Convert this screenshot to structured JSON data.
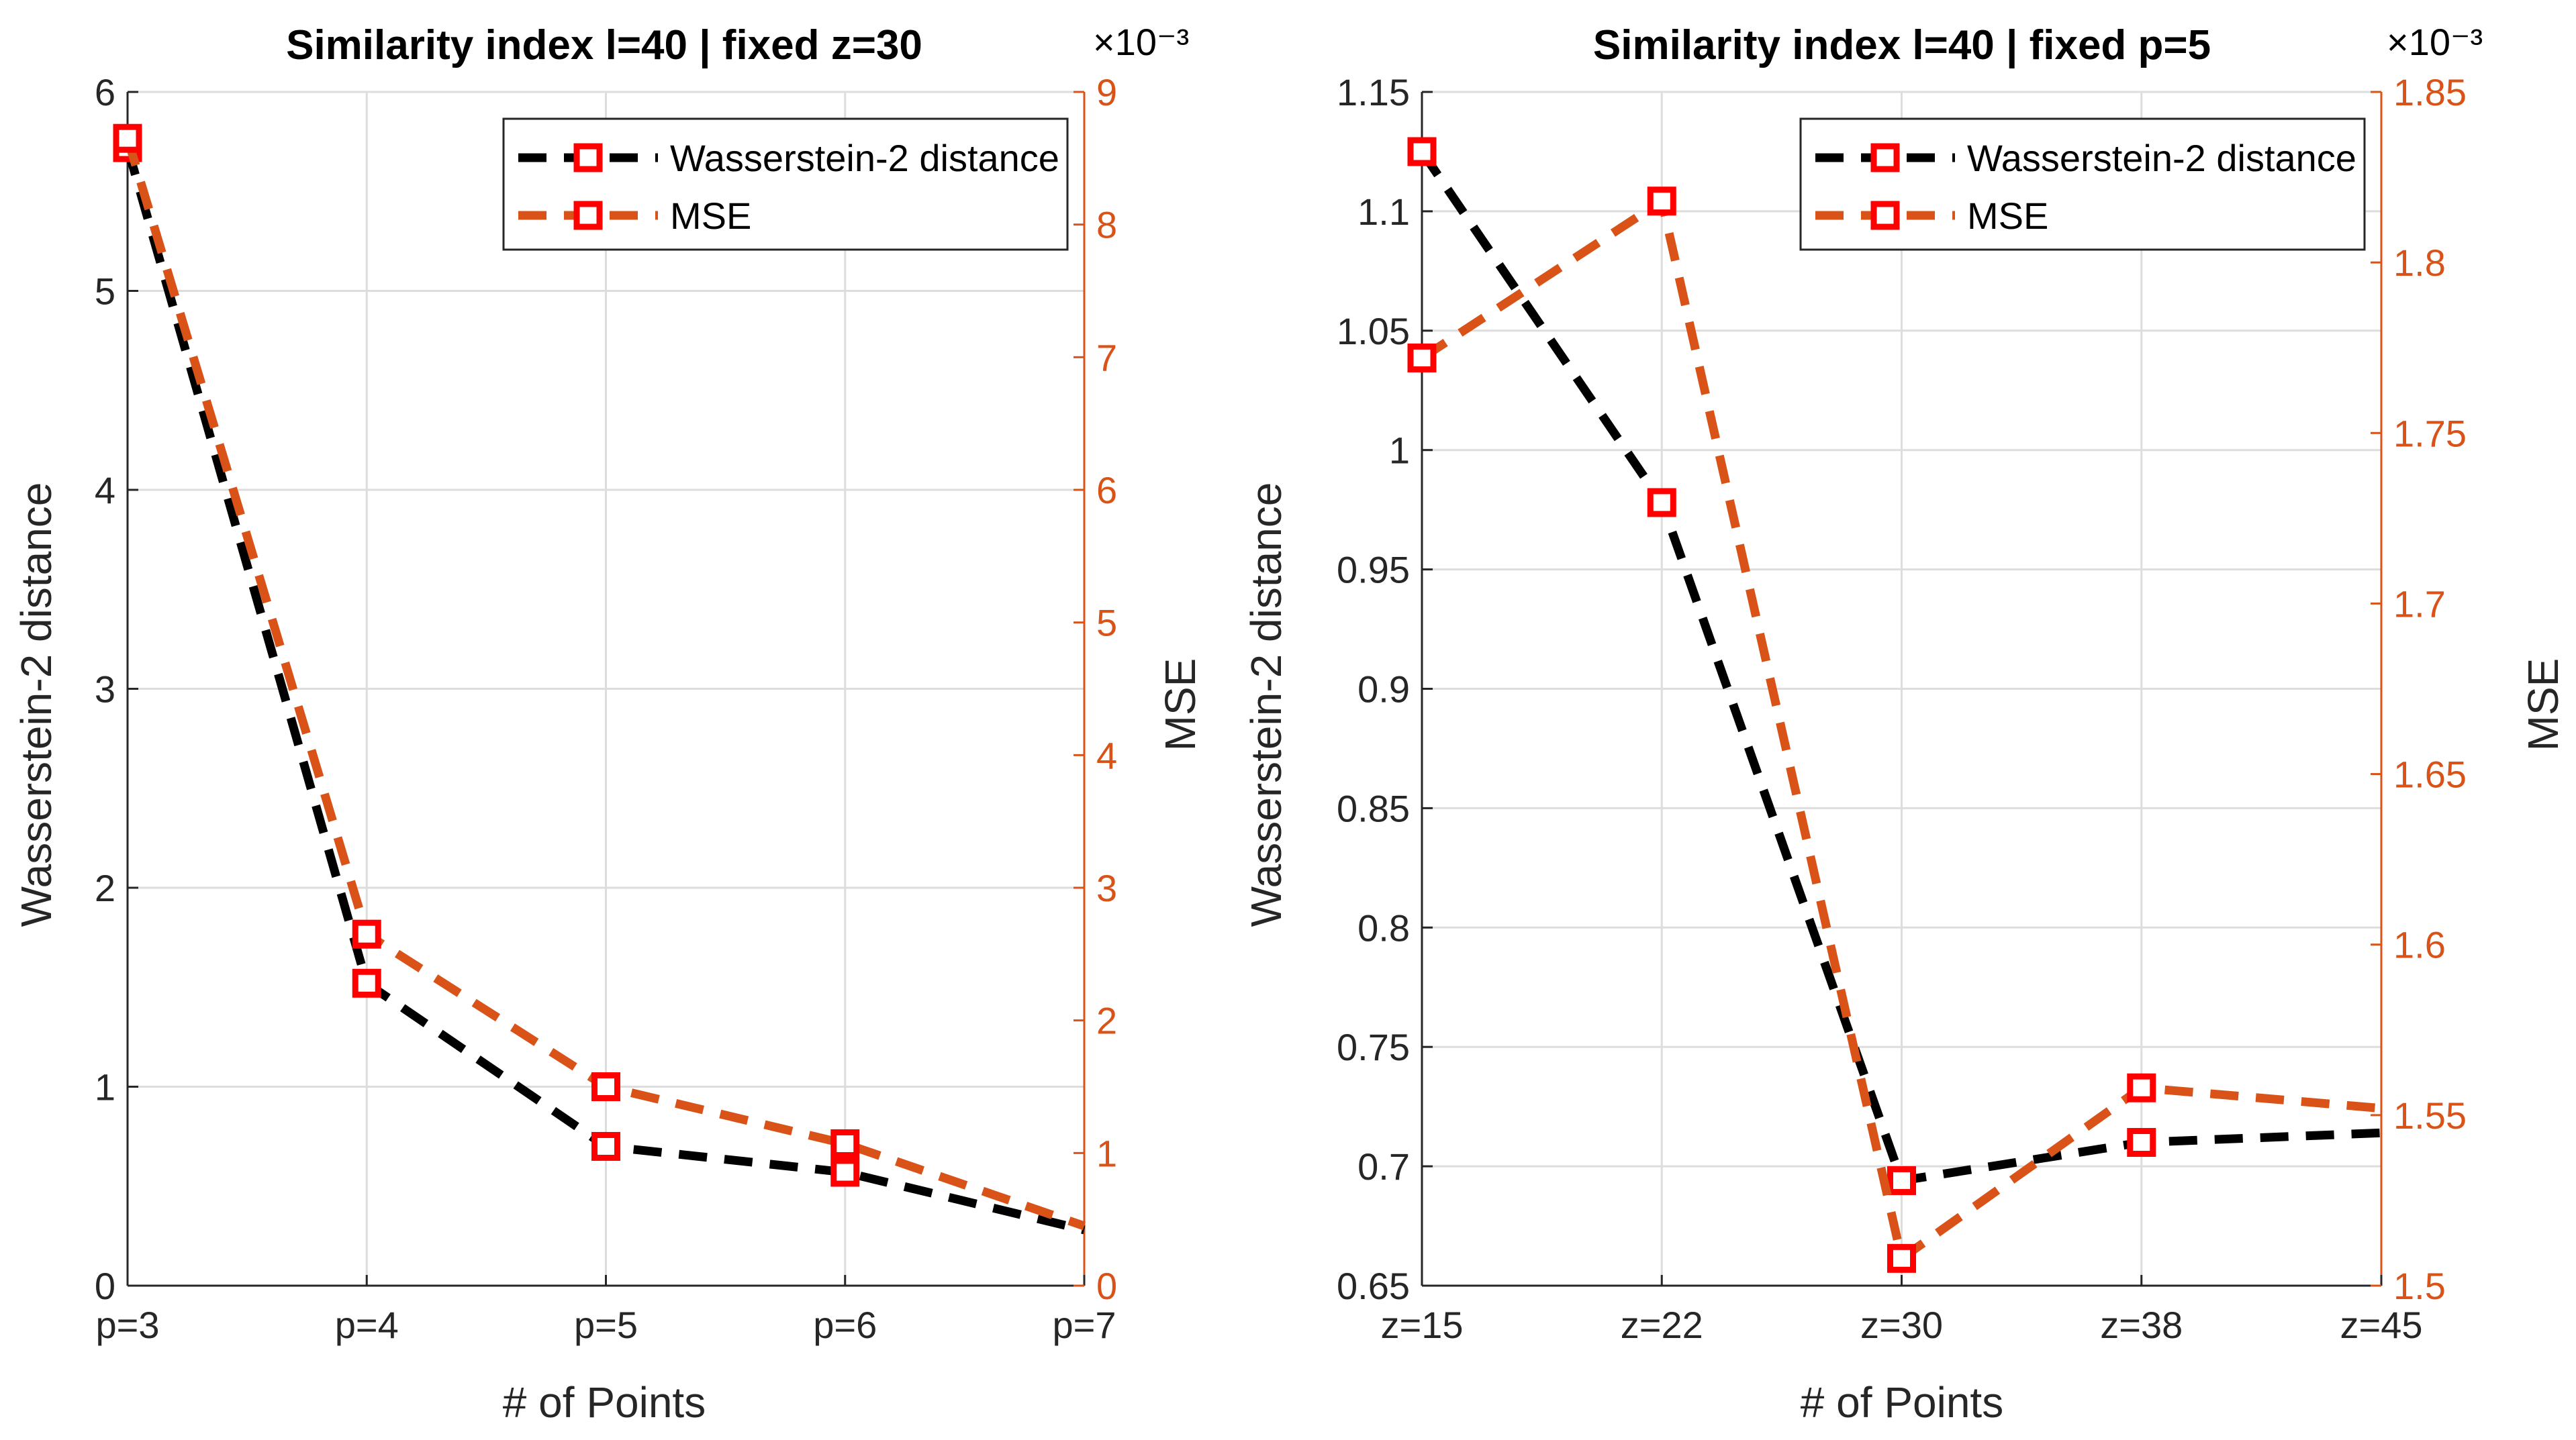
{
  "colors": {
    "w2": "#000000",
    "mse": "#D95319",
    "marker": "#FF0000",
    "axis_right": "#D95319",
    "grid": "#DDDDDD"
  },
  "chart_data": [
    {
      "type": "line",
      "title": "Similarity index l=40 | fixed z=30",
      "xlabel": "# of Points",
      "ylabel": "Wasserstein-2 distance",
      "ylabel_right": "MSE",
      "exponent_label": "×10⁻³",
      "categories": [
        "p=3",
        "p=4",
        "p=5",
        "p=6",
        "p=7"
      ],
      "ylim": [
        0,
        6
      ],
      "yticks": [
        "0",
        "1",
        "2",
        "3",
        "4",
        "5",
        "6"
      ],
      "ylim_right": [
        0,
        9
      ],
      "yticks_right": [
        "0",
        "1",
        "2",
        "3",
        "4",
        "5",
        "6",
        "7",
        "8",
        "9"
      ],
      "grid": true,
      "legend_position": "top-right",
      "series": [
        {
          "name": "Wasserstein-2 distance",
          "axis": "left",
          "values": [
            5.72,
            1.52,
            0.7,
            0.57,
            0.28
          ],
          "markers": [
            true,
            true,
            true,
            true,
            false
          ]
        },
        {
          "name": "MSE",
          "axis": "right",
          "values": [
            8.65,
            2.65,
            1.5,
            1.07,
            0.45
          ],
          "markers": [
            true,
            true,
            true,
            true,
            false
          ]
        }
      ]
    },
    {
      "type": "line",
      "title": "Similarity index l=40 | fixed p=5",
      "xlabel": "# of Points",
      "ylabel": "Wasserstein-2 distance",
      "ylabel_right": "MSE",
      "exponent_label": "×10⁻³",
      "categories": [
        "z=15",
        "z=22",
        "z=30",
        "z=38",
        "z=45"
      ],
      "ylim": [
        0.65,
        1.15
      ],
      "yticks": [
        "0.65",
        "0.7",
        "0.75",
        "0.8",
        "0.85",
        "0.9",
        "0.95",
        "1",
        "1.05",
        "1.1",
        "1.15"
      ],
      "ylim_right": [
        1.5,
        1.85
      ],
      "yticks_right": [
        "1.5",
        "1.55",
        "1.6",
        "1.65",
        "1.7",
        "1.75",
        "1.8",
        "1.85"
      ],
      "grid": true,
      "legend_position": "top-right",
      "series": [
        {
          "name": "Wasserstein-2 distance",
          "axis": "left",
          "values": [
            1.125,
            0.978,
            0.694,
            0.71,
            0.714
          ],
          "markers": [
            true,
            true,
            true,
            true,
            false
          ]
        },
        {
          "name": "MSE",
          "axis": "right",
          "values": [
            1.772,
            1.818,
            1.508,
            1.558,
            1.552
          ],
          "markers": [
            true,
            true,
            true,
            true,
            false
          ]
        }
      ]
    }
  ]
}
